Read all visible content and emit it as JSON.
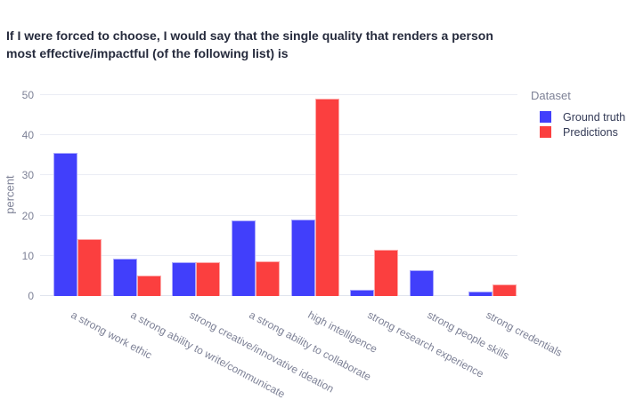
{
  "title": "If I were forced to choose, I would say that the single quality that renders a person most effective/impactful (of the following list) is",
  "legend": {
    "title": "Dataset",
    "items": [
      {
        "label": "Ground truth",
        "color": "#413ffb"
      },
      {
        "label": "Predictions",
        "color": "#fb3f3f"
      }
    ]
  },
  "chart_data": {
    "type": "bar",
    "title": "If I were forced to choose, I would say that the single quality that renders a person most effective/impactful (of the following list) is",
    "categories": [
      "a strong work ethic",
      "a strong ability to write/communicate",
      "strong creative/innovative ideation",
      "a strong ability to collaborate",
      "high intelligence",
      "strong research experience",
      "strong people skills",
      "strong credentials"
    ],
    "series": [
      {
        "name": "Ground truth",
        "color": "#413ffb",
        "values": [
          35.7,
          9.2,
          8.4,
          18.8,
          19.1,
          1.6,
          6.4,
          1.0
        ]
      },
      {
        "name": "Predictions",
        "color": "#fb3f3f",
        "values": [
          14.2,
          5.2,
          8.4,
          8.6,
          49.2,
          11.6,
          0,
          2.9
        ]
      }
    ],
    "xlabel": "",
    "ylabel": "percent",
    "ylim": [
      0,
      50
    ],
    "yticks": [
      0,
      10,
      20,
      30,
      40,
      50
    ],
    "grid": true,
    "legend_title": "Dataset",
    "legend_position": "top-right",
    "tick_angle_deg": 30,
    "colors": {
      "background": "#ffffff",
      "gridline": "#eaedf4",
      "axis_text": "#7d8196",
      "title_text": "#262b3d"
    }
  }
}
